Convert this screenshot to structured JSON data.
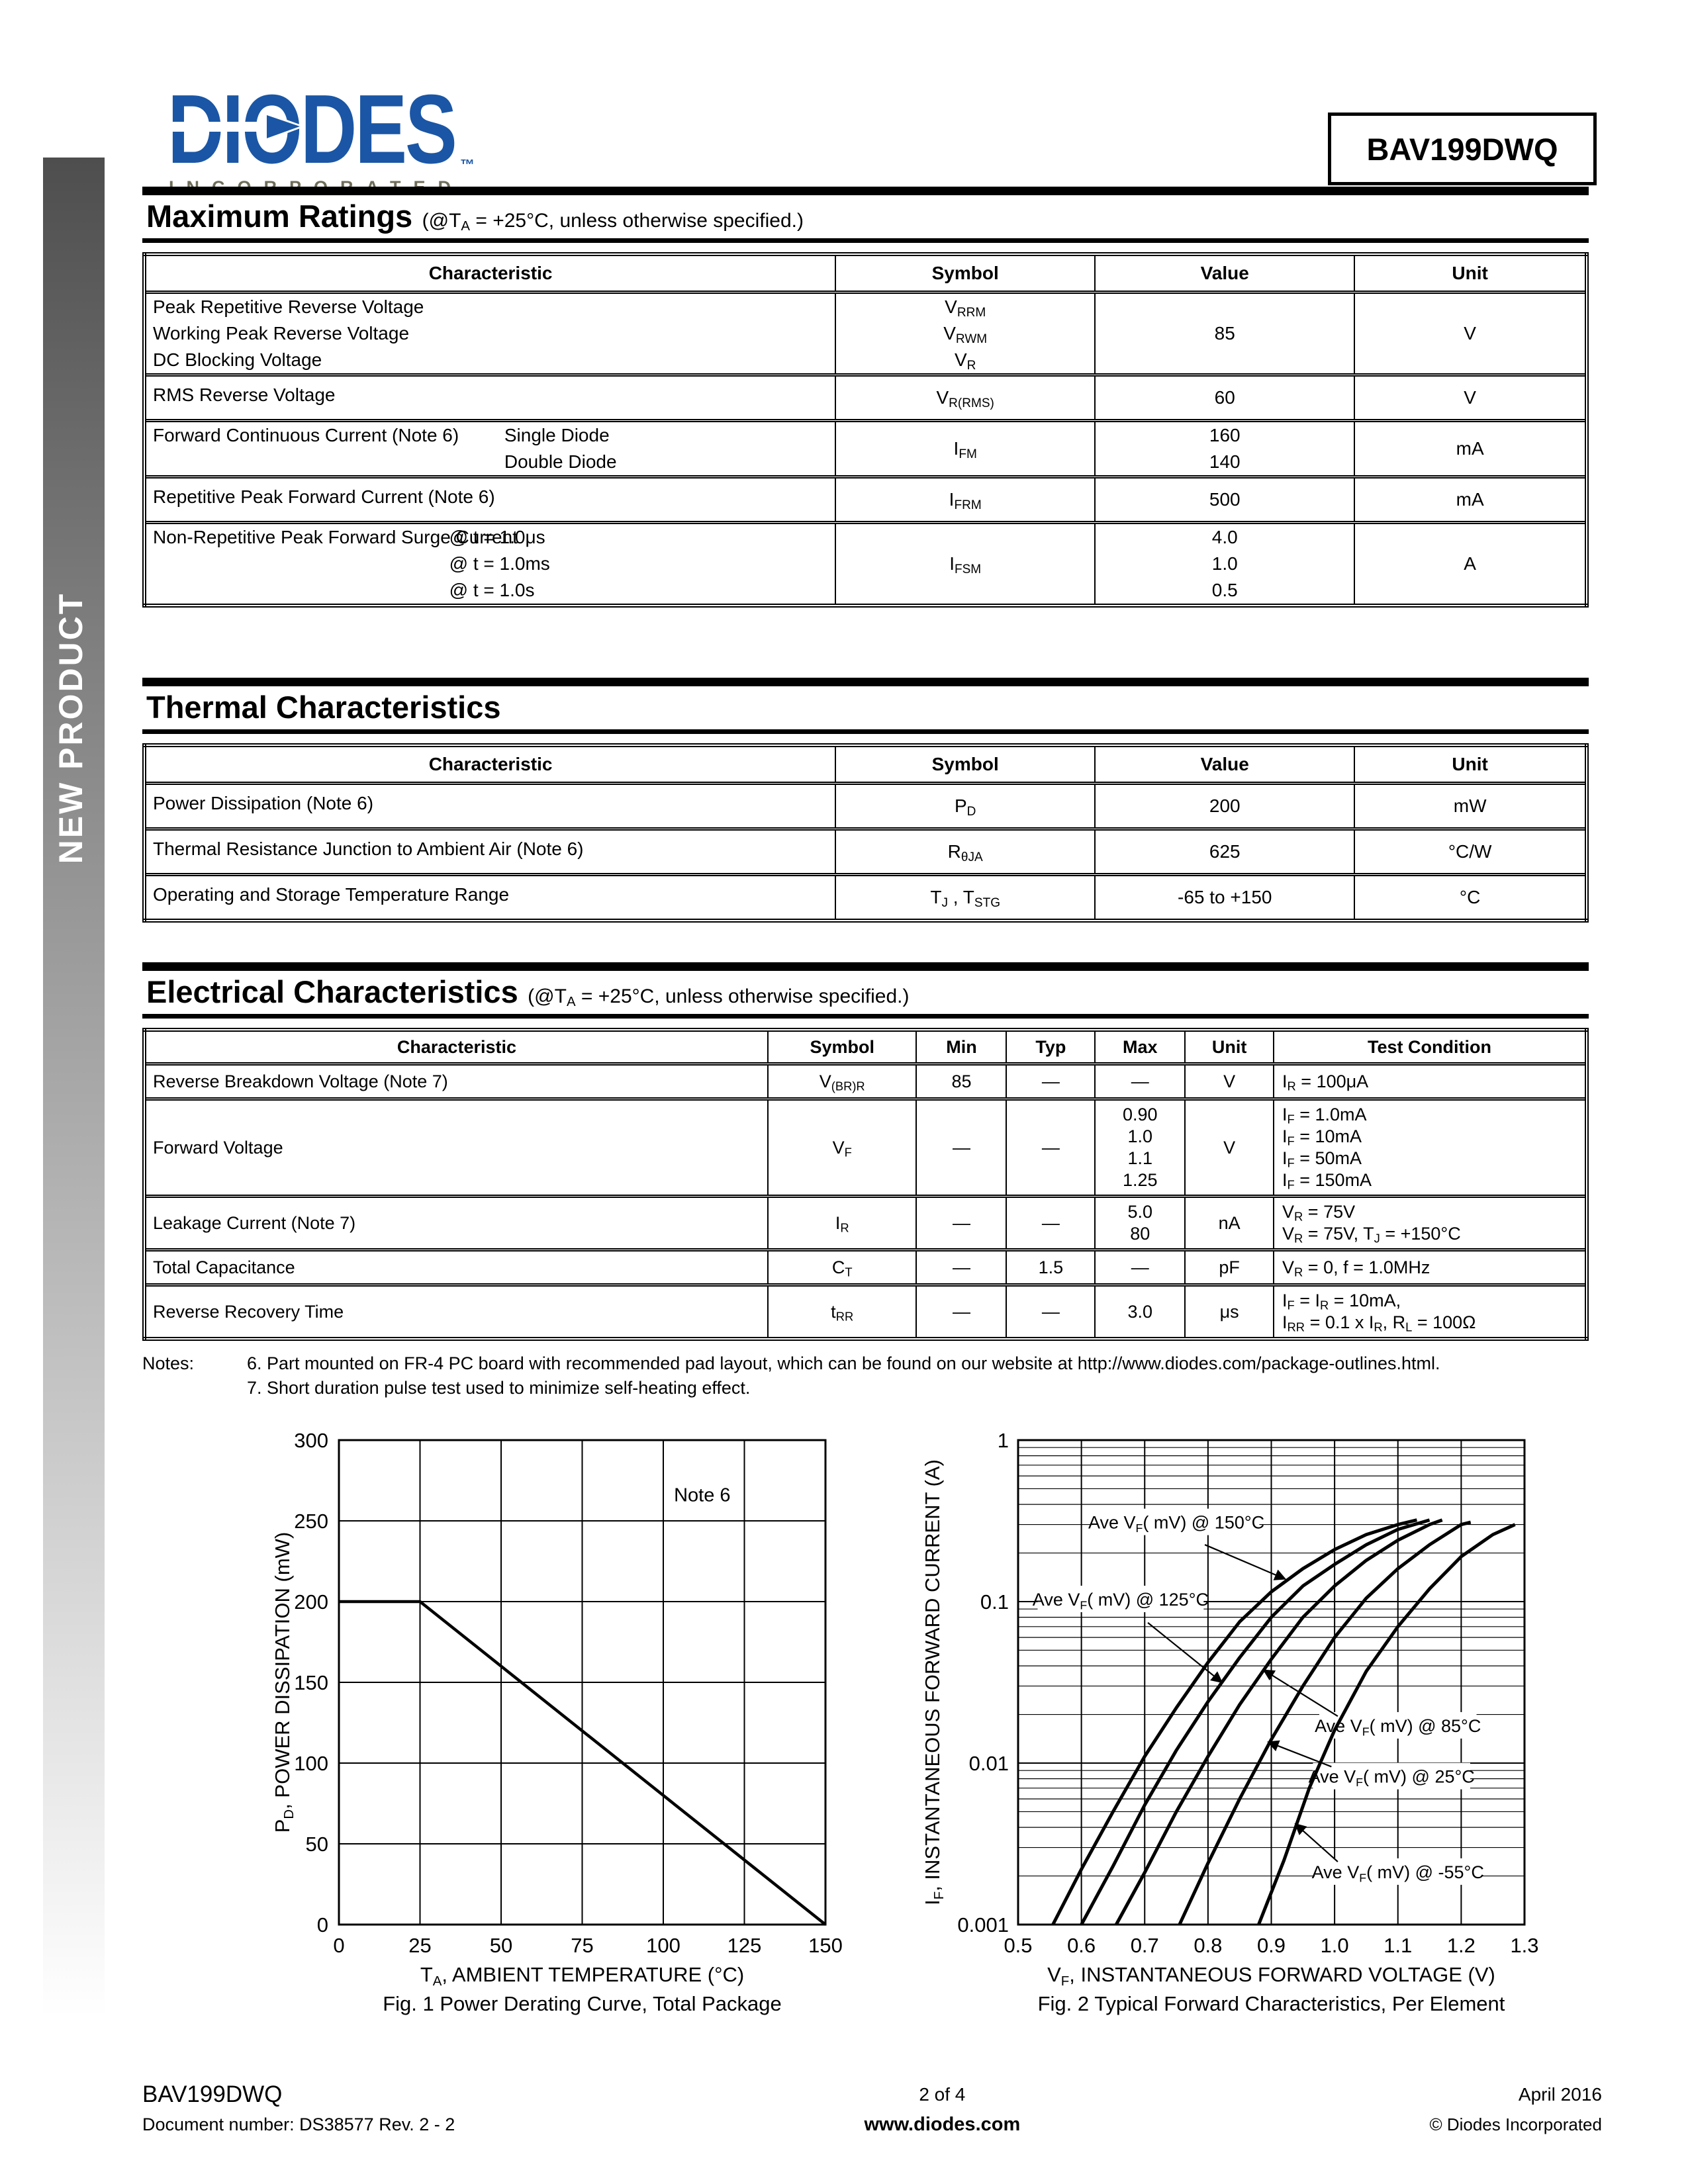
{
  "colors": {
    "logo_blue": "#1A56A5",
    "logo_sub_olive": "#6F6C5A",
    "ink": "#000000",
    "sidebar_gray": "#4E4E4E"
  },
  "header": {
    "logo_text": "DIODES",
    "logo_tm": "™",
    "logo_subtext": "INCORPORATED",
    "part_number": "BAV199DWQ"
  },
  "sidebar": {
    "label": "NEW PRODUCT"
  },
  "max_ratings": {
    "title": "Maximum Ratings",
    "subtitle": "(@T_{A} = +25°C, unless otherwise specified.)",
    "columns": [
      "Characteristic",
      "Symbol",
      "Value",
      "Unit"
    ],
    "rows": [
      {
        "characteristic": [
          "Peak Repetitive Reverse Voltage",
          "Working Peak Reverse Voltage",
          "DC Blocking Voltage"
        ],
        "conditions": [],
        "symbol": [
          "V_{RRM}",
          "V_{RWM}",
          "V_{R}"
        ],
        "values": [
          "85"
        ],
        "unit": "V"
      },
      {
        "characteristic": [
          "RMS Reverse Voltage"
        ],
        "conditions": [],
        "symbol": [
          "V_{R(RMS)}"
        ],
        "values": [
          "60"
        ],
        "unit": "V"
      },
      {
        "characteristic": [
          "Forward Continuous Current  (Note 6)"
        ],
        "conditions": [
          "Single Diode",
          "Double Diode"
        ],
        "symbol": [
          "I_{FM}"
        ],
        "values": [
          "160",
          "140"
        ],
        "unit": "mA"
      },
      {
        "characteristic": [
          "Repetitive Peak Forward Current (Note 6)"
        ],
        "conditions": [],
        "symbol": [
          "I_{FRM}"
        ],
        "values": [
          "500"
        ],
        "unit": "mA"
      },
      {
        "characteristic": [
          "Non-Repetitive Peak Forward Surge Current"
        ],
        "conditions": [
          "@ t = 1.0μs",
          "@ t = 1.0ms",
          "@ t = 1.0s"
        ],
        "symbol": [
          "I_{FSM}"
        ],
        "values": [
          "4.0",
          "1.0",
          "0.5"
        ],
        "unit": "A"
      }
    ]
  },
  "thermal": {
    "title": "Thermal Characteristics",
    "subtitle": "",
    "columns": [
      "Characteristic",
      "Symbol",
      "Value",
      "Unit"
    ],
    "rows": [
      {
        "characteristic": [
          "Power Dissipation (Note 6)"
        ],
        "conditions": [],
        "symbol": [
          "P_{D}"
        ],
        "values": [
          "200"
        ],
        "unit": "mW"
      },
      {
        "characteristic": [
          "Thermal Resistance Junction to Ambient Air (Note 6)"
        ],
        "conditions": [],
        "symbol": [
          "R_{θJA}"
        ],
        "values": [
          "625"
        ],
        "unit": "°C/W"
      },
      {
        "characteristic": [
          "Operating and Storage Temperature Range"
        ],
        "conditions": [],
        "symbol": [
          "T_{J} , T_{STG}"
        ],
        "values": [
          "-65 to +150"
        ],
        "unit": "°C"
      }
    ]
  },
  "electrical": {
    "title": "Electrical Characteristics",
    "subtitle": "(@T_{A} = +25°C, unless otherwise specified.)",
    "columns": [
      "Characteristic",
      "Symbol",
      "Min",
      "Typ",
      "Max",
      "Unit",
      "Test Condition"
    ],
    "rows": [
      {
        "characteristic": "Reverse Breakdown Voltage (Note 7)",
        "symbol": "V_{(BR)R}",
        "min": "85",
        "typ": "—",
        "max": [
          "—"
        ],
        "unit": "V",
        "test": [
          "I_{R} = 100μA"
        ]
      },
      {
        "characteristic": "Forward Voltage",
        "symbol": "V_{F}",
        "min": "—",
        "typ": "—",
        "max": [
          "0.90",
          "1.0",
          "1.1",
          "1.25"
        ],
        "unit": "V",
        "test": [
          "I_{F} = 1.0mA",
          "I_{F} = 10mA",
          "I_{F} = 50mA",
          "I_{F} = 150mA"
        ]
      },
      {
        "characteristic": "Leakage Current (Note 7)",
        "symbol": "I_{R}",
        "min": "—",
        "typ": "—",
        "max": [
          "5.0",
          "80"
        ],
        "unit": "nA",
        "test": [
          "V_{R} = 75V",
          "V_{R} = 75V, T_{J} = +150°C"
        ]
      },
      {
        "characteristic": "Total Capacitance",
        "symbol": "C_{T}",
        "min": "—",
        "typ": "1.5",
        "max": [
          "—"
        ],
        "unit": "pF",
        "test": [
          "V_{R} = 0, f = 1.0MHz"
        ]
      },
      {
        "characteristic": "Reverse Recovery Time",
        "symbol": "t_{RR}",
        "min": "—",
        "typ": "—",
        "max": [
          "3.0"
        ],
        "unit": "μs",
        "test": [
          "I_{F} = I_{R} = 10mA,",
          "I_{RR} = 0.1 x I_{R}, R_{L} = 100Ω"
        ]
      }
    ]
  },
  "notes": {
    "label": "Notes:",
    "items": [
      "6. Part mounted on FR-4 PC board with recommended pad layout, which can be found on our website at http://www.diodes.com/package-outlines.html.",
      "7. Short duration pulse test used to minimize self-heating effect."
    ]
  },
  "chart_data": [
    {
      "type": "line",
      "caption": "Fig. 1  Power Derating Curve, Total Package",
      "xlabel": "T_{A}, AMBIENT TEMPERATURE (°C)",
      "ylabel": "P_{D}, POWER DISSIPATION (mW)",
      "xlim": [
        0,
        150
      ],
      "ylim": [
        0,
        300
      ],
      "xticks": [
        0,
        25,
        50,
        75,
        100,
        125,
        150
      ],
      "yticks": [
        0,
        50,
        100,
        150,
        200,
        250,
        300
      ],
      "grid": true,
      "ylog": false,
      "annotations": [
        {
          "text": "Note 6",
          "x": 112,
          "y": 262
        }
      ],
      "series": [
        {
          "name": "power-derating",
          "points": [
            [
              0,
              200
            ],
            [
              25,
              200
            ],
            [
              150,
              0
            ]
          ]
        }
      ]
    },
    {
      "type": "line",
      "caption": "Fig. 2  Typical Forward Characteristics, Per Element",
      "xlabel": "V_{F}, INSTANTANEOUS FORWARD VOLTAGE (V)",
      "ylabel": "I_{F}, INSTANTANEOUS FORWARD CURRENT (A)",
      "xlim": [
        0.5,
        1.3
      ],
      "ylim": [
        0.001,
        1
      ],
      "xticks": [
        0.5,
        0.6,
        0.7,
        0.8,
        0.9,
        1.0,
        1.1,
        1.2,
        1.3
      ],
      "yticks": [
        1,
        0.1,
        0.01,
        0.001
      ],
      "ytick_labels": [
        "1",
        "0.1",
        "0.01",
        "0.001"
      ],
      "grid": true,
      "ylog": true,
      "series": [
        {
          "name": "150C",
          "points": [
            [
              0.555,
              0.001
            ],
            [
              0.6,
              0.0022
            ],
            [
              0.65,
              0.005
            ],
            [
              0.7,
              0.011
            ],
            [
              0.75,
              0.022
            ],
            [
              0.8,
              0.042
            ],
            [
              0.85,
              0.075
            ],
            [
              0.9,
              0.115
            ],
            [
              0.95,
              0.16
            ],
            [
              1.0,
              0.21
            ],
            [
              1.05,
              0.26
            ],
            [
              1.1,
              0.3
            ],
            [
              1.13,
              0.32
            ]
          ]
        },
        {
          "name": "125C",
          "points": [
            [
              0.6,
              0.001
            ],
            [
              0.65,
              0.0023
            ],
            [
              0.7,
              0.0055
            ],
            [
              0.75,
              0.012
            ],
            [
              0.8,
              0.024
            ],
            [
              0.85,
              0.045
            ],
            [
              0.9,
              0.08
            ],
            [
              0.95,
              0.125
            ],
            [
              1.0,
              0.17
            ],
            [
              1.05,
              0.225
            ],
            [
              1.1,
              0.28
            ],
            [
              1.15,
              0.32
            ]
          ]
        },
        {
          "name": "85C",
          "points": [
            [
              0.655,
              0.001
            ],
            [
              0.7,
              0.0021
            ],
            [
              0.75,
              0.005
            ],
            [
              0.8,
              0.011
            ],
            [
              0.85,
              0.023
            ],
            [
              0.9,
              0.044
            ],
            [
              0.95,
              0.08
            ],
            [
              1.0,
              0.125
            ],
            [
              1.05,
              0.18
            ],
            [
              1.1,
              0.24
            ],
            [
              1.15,
              0.3
            ],
            [
              1.17,
              0.32
            ]
          ]
        },
        {
          "name": "25C",
          "points": [
            [
              0.755,
              0.001
            ],
            [
              0.8,
              0.0024
            ],
            [
              0.85,
              0.006
            ],
            [
              0.9,
              0.014
            ],
            [
              0.95,
              0.03
            ],
            [
              1.0,
              0.06
            ],
            [
              1.05,
              0.105
            ],
            [
              1.1,
              0.16
            ],
            [
              1.15,
              0.225
            ],
            [
              1.2,
              0.3
            ],
            [
              1.215,
              0.31
            ]
          ]
        },
        {
          "name": "minus55C",
          "points": [
            [
              0.88,
              0.001
            ],
            [
              0.92,
              0.0025
            ],
            [
              0.96,
              0.007
            ],
            [
              1.0,
              0.016
            ],
            [
              1.05,
              0.037
            ],
            [
              1.1,
              0.07
            ],
            [
              1.15,
              0.12
            ],
            [
              1.2,
              0.19
            ],
            [
              1.25,
              0.26
            ],
            [
              1.285,
              0.3
            ]
          ]
        }
      ],
      "labels": [
        {
          "series": "150C",
          "text": "Ave V_{F}( mV) @ 150°C",
          "tx": 0.75,
          "ty": 0.3,
          "sx": 0.795,
          "sy": 0.225,
          "ax": 0.922,
          "ay": 0.138
        },
        {
          "series": "125C",
          "text": "Ave V_{F}( mV) @ 125°C",
          "tx": 0.662,
          "ty": 0.1,
          "sx": 0.705,
          "sy": 0.074,
          "ax": 0.822,
          "ay": 0.0316
        },
        {
          "series": "85C",
          "text": "Ave V_{F}( mV) @ 85°C",
          "tx": 1.1,
          "ty": 0.0165,
          "sx": 1.005,
          "sy": 0.0195,
          "ax": 0.888,
          "ay": 0.0377
        },
        {
          "series": "25C",
          "text": "Ave V_{F}( mV) @ 25°C",
          "tx": 1.09,
          "ty": 0.008,
          "sx": 0.995,
          "sy": 0.0095,
          "ax": 0.895,
          "ay": 0.0135
        },
        {
          "series": "minus55C",
          "text": "Ave V_{F}( mV) @ -55°C",
          "tx": 1.1,
          "ty": 0.00205,
          "sx": 1.005,
          "sy": 0.00245,
          "ax": 0.938,
          "ay": 0.0042
        }
      ]
    }
  ],
  "footer": {
    "left_line1": "BAV199DWQ",
    "left_line2": "Document number: DS38577 Rev. 2 - 2",
    "center_line1": "2 of 4",
    "center_line2": "www.diodes.com",
    "right_line1": "April 2016",
    "right_line2": "© Diodes Incorporated"
  }
}
